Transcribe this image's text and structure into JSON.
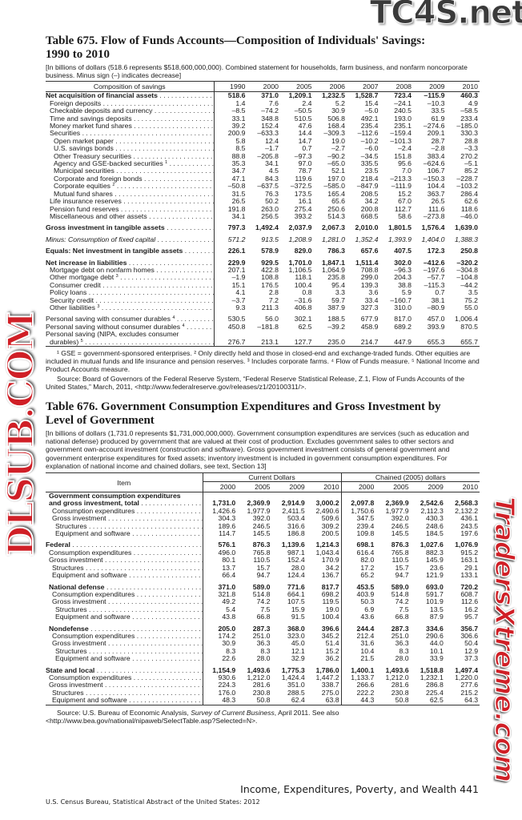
{
  "table675": {
    "title_line1": "Table 675. Flow of Funds Accounts—Composition of Individuals' Savings:",
    "title_line2": "1990 to 2010",
    "intro": "[In billions of dollars (518.6 represents $518,600,000,000). Combined statement for households, farm business, and nonfarm noncorporate business. Minus sign (–) indicates decrease]",
    "stub_header": "Composition of savings",
    "years": [
      "1990",
      "2000",
      "2005",
      "2006",
      "2007",
      "2008",
      "2009",
      "2010"
    ],
    "rows": [
      {
        "label": "Net acquisition of financial assets",
        "level": 0,
        "style": "bold",
        "values": [
          "518.6",
          "371.0",
          "1,209.1",
          "1,232.5",
          "1,528.7",
          "723.4",
          "–115.9",
          "460.3"
        ]
      },
      {
        "label": "Foreign deposits",
        "level": 1,
        "values": [
          "1.4",
          "7.6",
          "2.4",
          "5.2",
          "15.4",
          "–24.1",
          "–10.3",
          "4.9"
        ]
      },
      {
        "label": "Checkable deposits and currency",
        "level": 1,
        "values": [
          "–8.5",
          "–74.2",
          "–50.5",
          "30.9",
          "–5.0",
          "240.5",
          "33.5",
          "–58.5"
        ]
      },
      {
        "label": "Time and savings deposits",
        "level": 1,
        "values": [
          "33.1",
          "348.8",
          "510.5",
          "506.8",
          "492.1",
          "193.0",
          "61.9",
          "233.4"
        ]
      },
      {
        "label": "Money market fund shares",
        "level": 1,
        "values": [
          "39.2",
          "152.4",
          "47.6",
          "168.4",
          "235.4",
          "235.1",
          "–274.6",
          "–185.0"
        ]
      },
      {
        "label": "Securities",
        "level": 1,
        "values": [
          "200.9",
          "–633.3",
          "14.4",
          "–309.3",
          "–112.6",
          "–159.4",
          "209.1",
          "330.3"
        ]
      },
      {
        "label": "Open market paper",
        "level": 2,
        "values": [
          "5.8",
          "12.4",
          "14.7",
          "19.0",
          "–10.2",
          "–101.3",
          "28.7",
          "28.8"
        ]
      },
      {
        "label": "U.S. savings bonds",
        "level": 2,
        "values": [
          "8.5",
          "–1.7",
          "0.7",
          "–2.7",
          "–6.0",
          "–2.4",
          "–2.8",
          "–3.3"
        ]
      },
      {
        "label": "Other Treasury securities",
        "level": 2,
        "values": [
          "88.8",
          "–205.8",
          "–97.3",
          "–90.2",
          "–34.5",
          "151.8",
          "383.4",
          "270.2"
        ]
      },
      {
        "label": "Agency and GSE-backed securities",
        "sup": "1",
        "level": 2,
        "values": [
          "35.3",
          "34.1",
          "97.0",
          "–65.0",
          "335.5",
          "95.6",
          "–624.6",
          "–5.1"
        ]
      },
      {
        "label": "Municipal securities",
        "level": 2,
        "values": [
          "34.7",
          "4.5",
          "78.7",
          "52.1",
          "23.5",
          "7.0",
          "106.7",
          "85.2"
        ]
      },
      {
        "label": "Corporate and foreign bonds",
        "level": 2,
        "values": [
          "47.1",
          "84.3",
          "119.6",
          "197.0",
          "218.4",
          "–213.3",
          "–150.3",
          "–228.7"
        ]
      },
      {
        "label": "Corporate equities",
        "sup": "2",
        "level": 2,
        "values": [
          "–50.8",
          "–637.5",
          "–372.5",
          "–585.0",
          "–847.9",
          "–111.9",
          "104.4",
          "–103.2"
        ]
      },
      {
        "label": "Mutual fund shares",
        "level": 2,
        "values": [
          "31.5",
          "76.3",
          "173.5",
          "165.4",
          "208.5",
          "15.2",
          "363.7",
          "286.4"
        ]
      },
      {
        "label": "Life insurance reserves",
        "level": 1,
        "values": [
          "26.5",
          "50.2",
          "16.1",
          "65.6",
          "34.2",
          "67.0",
          "26.5",
          "62.6"
        ]
      },
      {
        "label": "Pension fund reserves",
        "level": 1,
        "values": [
          "191.8",
          "263.0",
          "275.4",
          "250.6",
          "200.8",
          "112.7",
          "111.6",
          "118.6"
        ]
      },
      {
        "label": "Miscellaneous and other assets",
        "level": 1,
        "values": [
          "34.1",
          "256.5",
          "393.2",
          "514.3",
          "668.5",
          "58.6",
          "–273.8",
          "–46.0"
        ]
      },
      {
        "label": "Gross investment in tangible assets",
        "level": 0,
        "style": "bold",
        "gap": true,
        "values": [
          "797.3",
          "1,492.4",
          "2,037.9",
          "2,067.3",
          "2,010.0",
          "1,801.5",
          "1,576.4",
          "1,639.0"
        ]
      },
      {
        "label": "Minus: Consumption of fixed capital",
        "level": 0,
        "style": "italic",
        "gap": true,
        "values": [
          "571.2",
          "913.5",
          "1,208.9",
          "1,281.0",
          "1,352.4",
          "1,393.9",
          "1,404.0",
          "1,388.3"
        ]
      },
      {
        "label": "Equals: Net investment in tangible assets",
        "level": 0,
        "style": "bold",
        "gap": true,
        "values": [
          "226.1",
          "578.9",
          "829.0",
          "786.3",
          "657.6",
          "407.5",
          "172.3",
          "250.8"
        ]
      },
      {
        "label": "Net increase in liabilities",
        "level": 0,
        "style": "bold",
        "gap": true,
        "values": [
          "229.9",
          "929.5",
          "1,701.0",
          "1,847.1",
          "1,511.4",
          "302.0",
          "–412.6",
          "–320.2"
        ]
      },
      {
        "label": "Mortgage debt on nonfarm homes",
        "level": 1,
        "values": [
          "207.1",
          "422.8",
          "1,106.5",
          "1,064.9",
          "708.8",
          "–96.3",
          "–197.6",
          "–304.8"
        ]
      },
      {
        "label": "Other mortgage debt",
        "sup": "3",
        "level": 1,
        "values": [
          "–1.9",
          "108.8",
          "118.1",
          "235.8",
          "299.0",
          "204.3",
          "–57.7",
          "–104.8"
        ]
      },
      {
        "label": "Consumer credit",
        "level": 1,
        "values": [
          "15.1",
          "176.5",
          "100.4",
          "95.4",
          "139.3",
          "38.8",
          "–115.3",
          "–44.2"
        ]
      },
      {
        "label": "Policy loans",
        "level": 1,
        "values": [
          "4.1",
          "2.8",
          "0.8",
          "3.3",
          "3.6",
          "5.9",
          "0.7",
          "3.5"
        ]
      },
      {
        "label": "Security credit",
        "level": 1,
        "values": [
          "–3.7",
          "7.2",
          "–31.6",
          "59.7",
          "33.4",
          "–160.7",
          "38.1",
          "75.2"
        ]
      },
      {
        "label": "Other liabilities",
        "sup": "3",
        "level": 1,
        "values": [
          "9.3",
          "211.3",
          "406.8",
          "387.9",
          "327.3",
          "310.0",
          "–80.9",
          "55.0"
        ]
      },
      {
        "label": "Personal saving with consumer durables",
        "sup": "4",
        "level": 0,
        "gap": true,
        "values": [
          "530.5",
          "56.0",
          "302.1",
          "188.5",
          "677.9",
          "817.0",
          "457.0",
          "1,006.4"
        ]
      },
      {
        "label": "Personal saving without consumer durables",
        "sup": "4",
        "level": 0,
        "values": [
          "450.8",
          "–181.8",
          "62.5",
          "–39.2",
          "458.9",
          "689.2",
          "393.9",
          "870.5"
        ]
      },
      {
        "label": "Personal saving (NIPA, excludes consumer",
        "level": 0,
        "nodots": true,
        "values": []
      },
      {
        "label": "durables)",
        "sup": "5",
        "level": 1,
        "values": [
          "276.7",
          "213.1",
          "127.7",
          "235.0",
          "214.7",
          "447.9",
          "655.3",
          "655.7"
        ]
      }
    ],
    "footnotes": "¹ GSE = government-sponsored enterprises. ² Only directly held and those in closed-end and exchange-traded funds. Other equities are included in mutual funds and life insurance and pension reserves. ³ Includes corporate farms. ⁴ Flow of Funds measure. ⁵ National Income and Product Accounts measure.",
    "source": "Source: Board of Governors of the Federal Reserve System, “Federal Reserve Statistical Release, Z.1, Flow of Funds Accounts of the United States,” March, 2011, <http://www.federalreserve.gov/releases/z1/20100311/>."
  },
  "table676": {
    "title_line1": "Table 676. Government Consumption Expenditures and Gross Investment by",
    "title_line2": "Level of Government",
    "intro": "[In billions of dollars (1,731.0 represents $1,731,000,000,000). Government consumption expenditures are services (such as education and national defense) produced by government that are valued at their cost of production. Excludes government sales to other sectors and government own-account investment (construction and software). Gross government investment consists of general government and government enterprise expenditures for fixed assets; inventory investment is included in government consumption expenditures. For explanation of national income and chained dollars, see text, Section 13]",
    "stub_header": "Item",
    "group1": "Current Dollars",
    "group2": "Chained (2005) dollars",
    "years": [
      "2000",
      "2005",
      "2009",
      "2010",
      "2000",
      "2005",
      "2009",
      "2010"
    ],
    "rows": [
      {
        "label": "Government consumption expenditures",
        "level": 1,
        "style": "bold",
        "nodots": true,
        "values": []
      },
      {
        "label": "and gross investment, total",
        "level": 1,
        "style": "bold",
        "values": [
          "1,731.0",
          "2,369.9",
          "2,914.9",
          "3,000.2",
          "2,097.8",
          "2,369.9",
          "2,542.6",
          "2,568.3"
        ]
      },
      {
        "label": "Consumption expenditures",
        "level": 2,
        "values": [
          "1,426.6",
          "1,977.9",
          "2,411.5",
          "2,490.6",
          "1,750.6",
          "1,977.9",
          "2,112.3",
          "2,132.2"
        ]
      },
      {
        "label": "Gross investment",
        "level": 2,
        "values": [
          "304.3",
          "392.0",
          "503.4",
          "509.6",
          "347.5",
          "392.0",
          "430.3",
          "436.1"
        ]
      },
      {
        "label": "Structures",
        "level": 3,
        "values": [
          "189.6",
          "246.5",
          "316.6",
          "309.2",
          "239.4",
          "246.5",
          "248.6",
          "243.5"
        ]
      },
      {
        "label": "Equipment and software",
        "level": 3,
        "values": [
          "114.7",
          "145.5",
          "186.8",
          "200.5",
          "109.8",
          "145.5",
          "184.5",
          "197.6"
        ]
      },
      {
        "label": "Federal",
        "level": 0,
        "style": "bold",
        "gap": true,
        "values": [
          "576.1",
          "876.3",
          "1,139.6",
          "1,214.3",
          "698.1",
          "876.3",
          "1,027.6",
          "1,076.9"
        ]
      },
      {
        "label": "Consumption expenditures",
        "level": 1,
        "values": [
          "496.0",
          "765.8",
          "987.1",
          "1,043.4",
          "616.4",
          "765.8",
          "882.3",
          "915.2"
        ]
      },
      {
        "label": "Gross investment",
        "level": 1,
        "values": [
          "80.1",
          "110.5",
          "152.4",
          "170.9",
          "82.0",
          "110.5",
          "145.9",
          "163.1"
        ]
      },
      {
        "label": "Structures",
        "level": 2,
        "values": [
          "13.7",
          "15.7",
          "28.0",
          "34.2",
          "17.2",
          "15.7",
          "23.6",
          "29.1"
        ]
      },
      {
        "label": "Equipment and software",
        "level": 2,
        "values": [
          "66.4",
          "94.7",
          "124.4",
          "136.7",
          "65.2",
          "94.7",
          "121.9",
          "133.1"
        ]
      },
      {
        "label": "National defense",
        "level": 1,
        "style": "bold",
        "gap": true,
        "values": [
          "371.0",
          "589.0",
          "771.6",
          "817.7",
          "453.5",
          "589.0",
          "693.0",
          "720.2"
        ]
      },
      {
        "label": "Consumption expenditures",
        "level": 2,
        "values": [
          "321.8",
          "514.8",
          "664.1",
          "698.2",
          "403.9",
          "514.8",
          "591.7",
          "608.7"
        ]
      },
      {
        "label": "Gross investment",
        "level": 2,
        "values": [
          "49.2",
          "74.2",
          "107.5",
          "119.5",
          "50.3",
          "74.2",
          "101.9",
          "112.6"
        ]
      },
      {
        "label": "Structures",
        "level": 3,
        "values": [
          "5.4",
          "7.5",
          "15.9",
          "19.0",
          "6.9",
          "7.5",
          "13.5",
          "16.2"
        ]
      },
      {
        "label": "Equipment and software",
        "level": 3,
        "values": [
          "43.8",
          "66.8",
          "91.5",
          "100.4",
          "43.6",
          "66.8",
          "87.9",
          "95.7"
        ]
      },
      {
        "label": "Nondefense",
        "level": 1,
        "style": "bold",
        "gap": true,
        "values": [
          "205.0",
          "287.3",
          "368.0",
          "396.6",
          "244.4",
          "287.3",
          "334.6",
          "356.7"
        ]
      },
      {
        "label": "Consumption expenditures",
        "level": 2,
        "values": [
          "174.2",
          "251.0",
          "323.0",
          "345.2",
          "212.4",
          "251.0",
          "290.6",
          "306.6"
        ]
      },
      {
        "label": "Gross investment",
        "level": 2,
        "values": [
          "30.9",
          "36.3",
          "45.0",
          "51.4",
          "31.6",
          "36.3",
          "44.0",
          "50.4"
        ]
      },
      {
        "label": "Structures",
        "level": 3,
        "values": [
          "8.3",
          "8.3",
          "12.1",
          "15.2",
          "10.4",
          "8.3",
          "10.1",
          "12.9"
        ]
      },
      {
        "label": "Equipment and software",
        "level": 3,
        "values": [
          "22.6",
          "28.0",
          "32.9",
          "36.2",
          "21.5",
          "28.0",
          "33.9",
          "37.3"
        ]
      },
      {
        "label": "State and local",
        "level": 0,
        "style": "bold",
        "gap": true,
        "values": [
          "1,154.9",
          "1,493.6",
          "1,775.3",
          "1,786.0",
          "1,400.1",
          "1,493.6",
          "1,518.8",
          "1,497.4"
        ]
      },
      {
        "label": "Consumption expenditures",
        "level": 1,
        "values": [
          "930.6",
          "1,212.0",
          "1,424.4",
          "1,447.2",
          "1,133.7",
          "1,212.0",
          "1,232.1",
          "1,220.0"
        ]
      },
      {
        "label": "Gross investment",
        "level": 1,
        "values": [
          "224.3",
          "281.6",
          "351.0",
          "338.7",
          "266.6",
          "281.6",
          "286.8",
          "277.6"
        ]
      },
      {
        "label": "Structures",
        "level": 2,
        "values": [
          "176.0",
          "230.8",
          "288.5",
          "275.0",
          "222.2",
          "230.8",
          "225.4",
          "215.2"
        ]
      },
      {
        "label": "Equipment and software",
        "level": 2,
        "values": [
          "48.3",
          "50.8",
          "62.4",
          "63.8",
          "44.3",
          "50.8",
          "62.5",
          "64.3"
        ]
      }
    ],
    "source_prefix": "Source: U.S. Bureau of Economic Analysis, ",
    "source_italic": "Survey of Current Business",
    "source_suffix": ", April 2011. See also <http://www.bea.gov/national/nipaweb/SelectTable.asp?Selected=N>."
  },
  "footer": {
    "section_page": "Income, Expenditures, Poverty, and Wealth  441",
    "publication": "U.S. Census Bureau, Statistical Abstract of the United States: 2012"
  },
  "watermarks": {
    "top_right": "TC4S.net",
    "center": "DLSUB.COM",
    "bottom": "TradersXtreme.com"
  }
}
